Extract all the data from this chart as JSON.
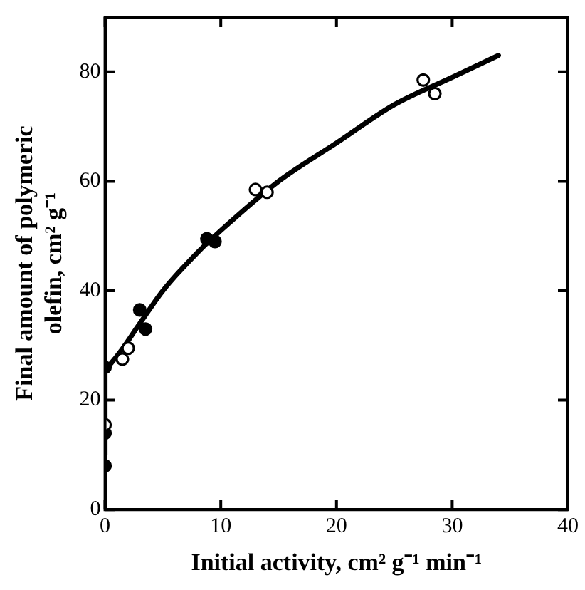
{
  "chart_data": {
    "type": "scatter",
    "xlabel": "Initial activity, cm² g⁻¹ min⁻¹",
    "ylabel": "Final amount of polymeric olefin, cm² g⁻¹",
    "xlim": [
      0,
      40
    ],
    "xticks": [
      0,
      10,
      20,
      30,
      40
    ],
    "ylim": [
      0,
      90
    ],
    "yticks": [
      0,
      20,
      40,
      60,
      80
    ],
    "grid": false,
    "legend": false,
    "marker": "circle",
    "series": [
      {
        "color": "#000000",
        "x": [
          0,
          0,
          0,
          3,
          3.5,
          8.8,
          9.5
        ],
        "values": [
          8,
          14,
          26,
          36.5,
          33,
          49.5,
          49
        ]
      },
      {
        "color": "#ffffff",
        "x": [
          0,
          1.5,
          2,
          13,
          14,
          27.5,
          28.5
        ],
        "values": [
          15.5,
          27.5,
          29.5,
          58.5,
          58,
          78.5,
          76
        ]
      },
      {
        "type": "line",
        "color": "#000000",
        "marker": "none",
        "line_style": "solid",
        "x": [
          0,
          0,
          1,
          3,
          5,
          8,
          10,
          15,
          20,
          25,
          30,
          34
        ],
        "values": [
          10,
          26,
          28,
          34,
          40,
          47,
          51,
          60,
          67,
          74,
          79,
          83
        ]
      }
    ]
  }
}
